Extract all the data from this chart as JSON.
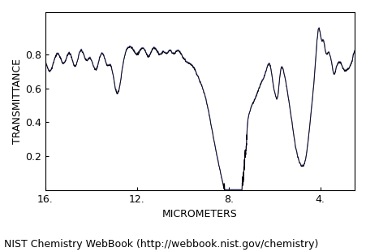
{
  "title": "",
  "xlabel": "MICROMETERS",
  "ylabel": "TRANSMITTANCE",
  "xlim": [
    16.0,
    2.5
  ],
  "ylim": [
    0.0,
    1.05
  ],
  "yticks": [
    0.2,
    0.4,
    0.6,
    0.8
  ],
  "xticks": [
    16.0,
    12.0,
    8.0,
    4.0
  ],
  "xticklabels": [
    "16.",
    "12.",
    "8.",
    "4."
  ],
  "line_color_main": "#000000",
  "line_color_secondary": "#6666bb",
  "bg_color": "#ffffff",
  "plot_bg": "#ffffff",
  "footer": "NIST Chemistry WebBook (http://webbook.nist.gov/chemistry)",
  "footer_fontsize": 9,
  "axis_fontsize": 9,
  "ylabel_fontsize": 9
}
